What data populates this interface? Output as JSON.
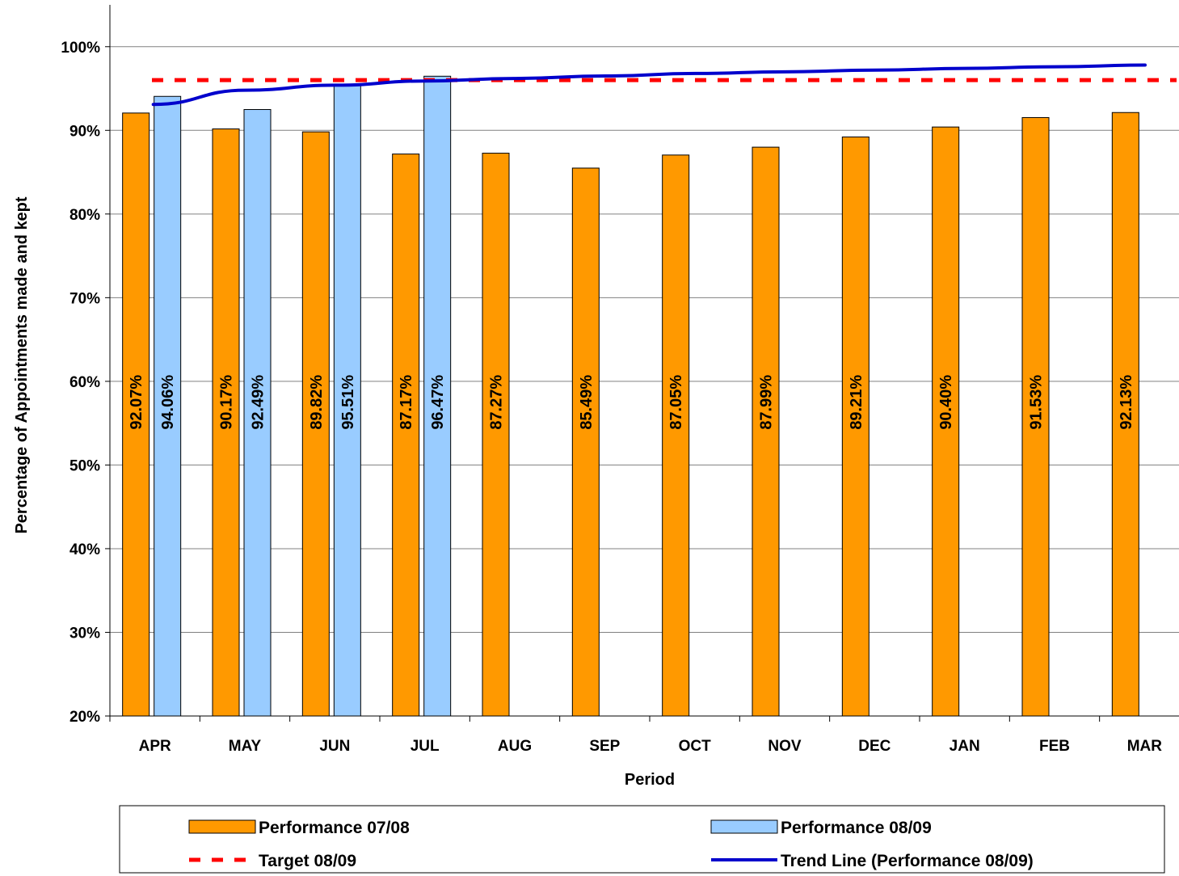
{
  "chart_data": {
    "type": "bar",
    "categories": [
      "APR",
      "MAY",
      "JUN",
      "JUL",
      "AUG",
      "SEP",
      "OCT",
      "NOV",
      "DEC",
      "JAN",
      "FEB",
      "MAR"
    ],
    "series": [
      {
        "name": "Performance 07/08",
        "type": "bar",
        "color": "#FF9900",
        "values": [
          92.07,
          90.17,
          89.82,
          87.17,
          87.27,
          85.49,
          87.05,
          87.99,
          89.21,
          90.4,
          91.53,
          92.13
        ],
        "labels": [
          "92.07%",
          "90.17%",
          "89.82%",
          "87.17%",
          "87.27%",
          "85.49%",
          "87.05%",
          "87.99%",
          "89.21%",
          "90.40%",
          "91.53%",
          "92.13%"
        ]
      },
      {
        "name": "Performance 08/09",
        "type": "bar",
        "color": "#99CCFF",
        "values": [
          94.06,
          92.49,
          95.51,
          96.47,
          null,
          null,
          null,
          null,
          null,
          null,
          null,
          null
        ],
        "labels": [
          "94.06%",
          "92.49%",
          "95.51%",
          "96.47%",
          "",
          "",
          "",
          "",
          "",
          "",
          "",
          ""
        ]
      },
      {
        "name": "Target 08/09",
        "type": "line",
        "style": "dashed",
        "color": "#FF0000",
        "values": [
          96,
          96,
          96,
          96,
          96,
          96,
          96,
          96,
          96,
          96,
          96,
          96
        ]
      },
      {
        "name": "Trend Line (Performance 08/09)",
        "type": "line",
        "style": "solid",
        "color": "#0000CC",
        "values": [
          93.1,
          94.8,
          95.4,
          95.9,
          96.2,
          96.5,
          96.8,
          97.0,
          97.2,
          97.4,
          97.6,
          97.8
        ]
      }
    ],
    "xlabel": "Period",
    "ylabel": "Percentage of Appointments made and kept",
    "ylim": [
      20,
      105
    ],
    "yticks": [
      20,
      30,
      40,
      50,
      60,
      70,
      80,
      90,
      100
    ],
    "ytick_labels": [
      "20%",
      "30%",
      "40%",
      "50%",
      "60%",
      "70%",
      "80%",
      "90%",
      "100%"
    ],
    "grid": true,
    "legend_position": "bottom"
  }
}
